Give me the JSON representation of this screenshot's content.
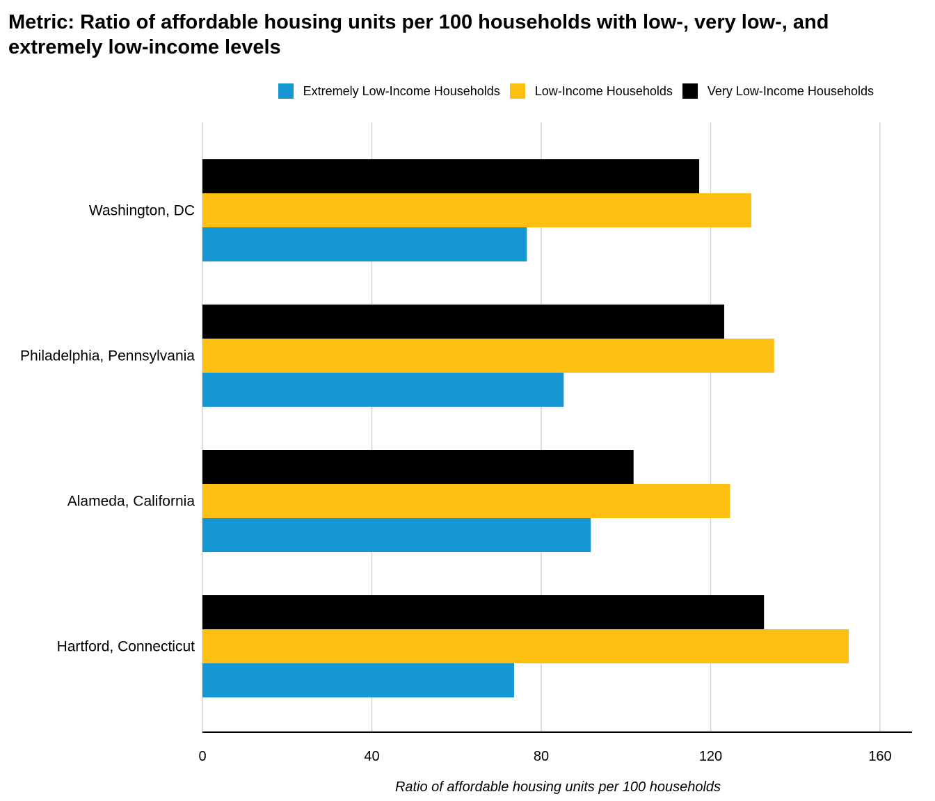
{
  "chart_data": {
    "type": "bar",
    "orientation": "horizontal",
    "title": "Metric: Ratio of affordable housing units per 100 households with low-, very low-, and extremely low-income levels",
    "xlabel": "Ratio of affordable housing units per 100 households",
    "ylabel": "",
    "xlim": [
      0,
      168
    ],
    "xticks": [
      "0",
      "40",
      "80",
      "120",
      "160"
    ],
    "grid": true,
    "legend_position": "top-right",
    "categories": [
      "Washington, DC",
      "Philadelphia, Pennsylvania",
      "Alameda, California",
      "Hartford, Connecticut"
    ],
    "series": [
      {
        "name": "Very Low-Income Households",
        "color": "#000000",
        "values": [
          117.3,
          123.2,
          101.8,
          132.6
        ]
      },
      {
        "name": "Low-Income Households",
        "color": "#fdbf11",
        "values": [
          129.6,
          135.0,
          124.6,
          152.6
        ]
      },
      {
        "name": "Extremely Low-Income Households",
        "color": "#1696d2",
        "values": [
          76.6,
          85.3,
          91.7,
          73.6
        ]
      }
    ],
    "legend": [
      {
        "name": "Extremely Low-Income Households",
        "color": "#1696d2"
      },
      {
        "name": "Low-Income Households",
        "color": "#fdbf11"
      },
      {
        "name": "Very Low-Income Households",
        "color": "#000000"
      }
    ]
  }
}
